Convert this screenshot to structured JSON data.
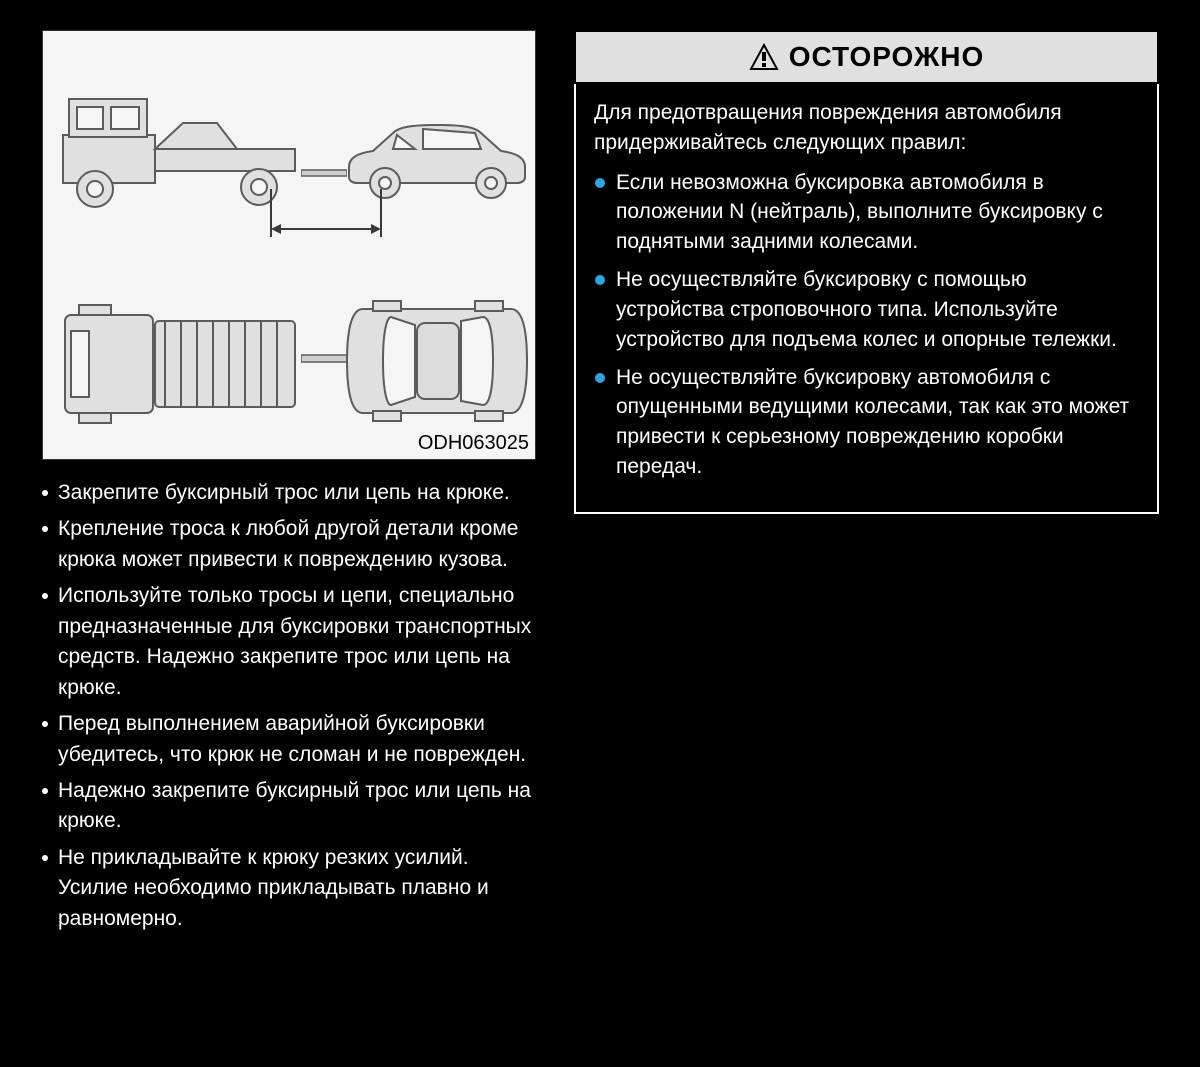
{
  "figure": {
    "code": "ODH063025",
    "background_color": "#f5f5f5",
    "stroke_color": "#5c5c5c",
    "fill_color": "#e0e0e0",
    "arrow_color": "#3a3a3a"
  },
  "caution": {
    "header_label": "ОСТОРОЖНО",
    "header_bg": "#e0e0e0",
    "header_border": "#000000",
    "header_text_color": "#000000",
    "body_border": "#ffffff",
    "body_text_color": "#ffffff",
    "intro": "Для предотвращения повреждения автомобиля придерживайтесь следующих правил:",
    "bullet_color": "#2aa7e0",
    "bullets": [
      "Если невозможна буксировка автомобиля в положении N (нейтраль), выполните буксировку с поднятыми задними колесами.",
      "Не осуществляйте буксировку с помощью устройства строповочного типа. Используйте устройство для подъема колес и опорные тележки.",
      "Не осуществляйте буксировку автомобиля с опущенными ведущими колесами, так как это может привести к серьезному повреждению коробки передач."
    ]
  },
  "left_text": {
    "bullets": [
      "Закрепите буксирный трос или цепь на крюке.",
      "Крепление троса к любой другой детали кроме крюка может привести к повреждению кузова.",
      "Используйте только тросы и цепи, специально предназначенные для буксировки транспортных средств. Надежно закрепите трос или цепь на крюке.",
      "Перед выполнением аварийной буксировки убедитесь, что крюк не сломан и не поврежден.",
      "Надежно закрепите буксирный трос или цепь на крюке.",
      "Не прикладывайте к крюку резких усилий. Усилие необходимо прикладывать плавно и равномерно."
    ],
    "bullet_color": "#ffffff"
  }
}
